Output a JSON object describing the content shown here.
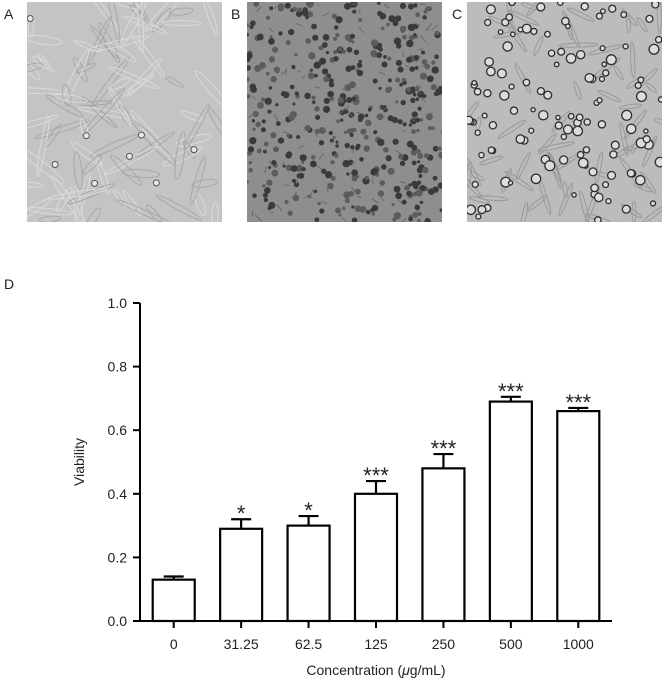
{
  "panels": {
    "a_label": "A",
    "b_label": "B",
    "c_label": "C",
    "d_label": "D"
  },
  "colors": {
    "micro_a_bg": "#c4c4c4",
    "micro_b_bg": "#8e8e8e",
    "micro_c_bg": "#bcbcbc",
    "bar_fill": "#ffffff",
    "bar_stroke": "#000000"
  },
  "chart_data": {
    "type": "bar",
    "xlabel_prefix": "Concentration (",
    "xlabel_mu": "μ",
    "xlabel_suffix": "g/mL)",
    "ylabel": "Viability",
    "categories": [
      "0",
      "31.25",
      "62.5",
      "125",
      "250",
      "500",
      "1000"
    ],
    "values": [
      0.13,
      0.29,
      0.3,
      0.4,
      0.48,
      0.69,
      0.66
    ],
    "errors": [
      0.01,
      0.03,
      0.03,
      0.04,
      0.045,
      0.015,
      0.01
    ],
    "significance": [
      "",
      "*",
      "*",
      "***",
      "***",
      "***",
      "***"
    ],
    "ylim": [
      0,
      1.0
    ],
    "yticks": [
      "0.0",
      "0.2",
      "0.4",
      "0.6",
      "0.8",
      "1.0"
    ],
    "ytick_values": [
      0,
      0.2,
      0.4,
      0.6,
      0.8,
      1.0
    ],
    "grid": false,
    "legend": "none"
  }
}
